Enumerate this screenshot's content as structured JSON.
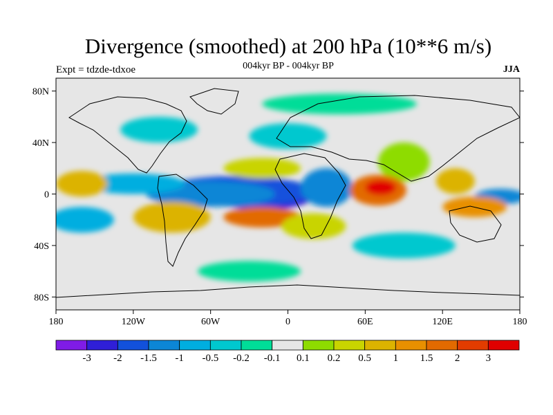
{
  "title": "Divergence (smoothed) at 200 hPa (10**6 m/s)",
  "experiment": "Expt = tdzde-tdxoe",
  "period": "004kyr BP - 004kyr BP",
  "season": "JJA",
  "lat_labels": [
    "80N",
    "40N",
    "0",
    "40S",
    "80S"
  ],
  "lat_values": [
    80,
    40,
    0,
    -40,
    -80
  ],
  "lon_labels": [
    "180",
    "120W",
    "60W",
    "0",
    "60E",
    "120E",
    "180"
  ],
  "lon_values": [
    -180,
    -120,
    -60,
    0,
    60,
    120,
    180
  ],
  "colorbar": {
    "colors": [
      "#7f1ce6",
      "#2f1fd8",
      "#1251dc",
      "#0c86d6",
      "#00aee0",
      "#00c8cf",
      "#00dd98",
      "#e6e6e6",
      "#8edc00",
      "#c9d400",
      "#dcb300",
      "#e89000",
      "#e26a00",
      "#e23c00",
      "#e00000"
    ],
    "labels": [
      "-3",
      "-2",
      "-1.5",
      "-1",
      "-0.5",
      "-0.2",
      "-0.1",
      "0.1",
      "0.2",
      "0.5",
      "1",
      "1.5",
      "2",
      "3"
    ]
  },
  "field_patches": [
    {
      "lon": -10,
      "lat": -5,
      "rx": 20,
      "ry": 7,
      "level": 0
    },
    {
      "lon": -20,
      "lat": -2,
      "rx": 40,
      "ry": 10,
      "level": 1
    },
    {
      "lon": -40,
      "lat": 2,
      "rx": 60,
      "ry": 12,
      "level": 2
    },
    {
      "lon": -60,
      "lat": 0,
      "rx": 50,
      "ry": 10,
      "level": 3
    },
    {
      "lon": -120,
      "lat": 8,
      "rx": 40,
      "ry": 8,
      "level": 4
    },
    {
      "lon": 30,
      "lat": 5,
      "rx": 20,
      "ry": 15,
      "level": 3
    },
    {
      "lon": 60,
      "lat": 2,
      "rx": 15,
      "ry": 6,
      "level": 3
    },
    {
      "lon": 165,
      "lat": -2,
      "rx": 20,
      "ry": 6,
      "level": 3
    },
    {
      "lon": -160,
      "lat": -20,
      "rx": 25,
      "ry": 10,
      "level": 4
    },
    {
      "lon": 90,
      "lat": -40,
      "rx": 40,
      "ry": 10,
      "level": 5
    },
    {
      "lon": 0,
      "lat": 45,
      "rx": 30,
      "ry": 10,
      "level": 5
    },
    {
      "lon": -100,
      "lat": 50,
      "rx": 30,
      "ry": 10,
      "level": 5
    },
    {
      "lon": 40,
      "lat": 70,
      "rx": 60,
      "ry": 8,
      "level": 6
    },
    {
      "lon": -30,
      "lat": -60,
      "rx": 40,
      "ry": 8,
      "level": 6
    },
    {
      "lon": 90,
      "lat": 25,
      "rx": 20,
      "ry": 15,
      "level": 8
    },
    {
      "lon": 70,
      "lat": 3,
      "rx": 22,
      "ry": 12,
      "level": 12
    },
    {
      "lon": 72,
      "lat": 5,
      "rx": 12,
      "ry": 6,
      "level": 14
    },
    {
      "lon": -20,
      "lat": -18,
      "rx": 30,
      "ry": 8,
      "level": 12
    },
    {
      "lon": 145,
      "lat": -10,
      "rx": 25,
      "ry": 8,
      "level": 11
    },
    {
      "lon": -160,
      "lat": 8,
      "rx": 20,
      "ry": 10,
      "level": 10
    },
    {
      "lon": -90,
      "lat": -18,
      "rx": 30,
      "ry": 12,
      "level": 10
    },
    {
      "lon": 130,
      "lat": 10,
      "rx": 15,
      "ry": 10,
      "level": 10
    },
    {
      "lon": 20,
      "lat": -25,
      "rx": 25,
      "ry": 10,
      "level": 9
    },
    {
      "lon": -20,
      "lat": 20,
      "rx": 30,
      "ry": 8,
      "level": 9
    }
  ]
}
